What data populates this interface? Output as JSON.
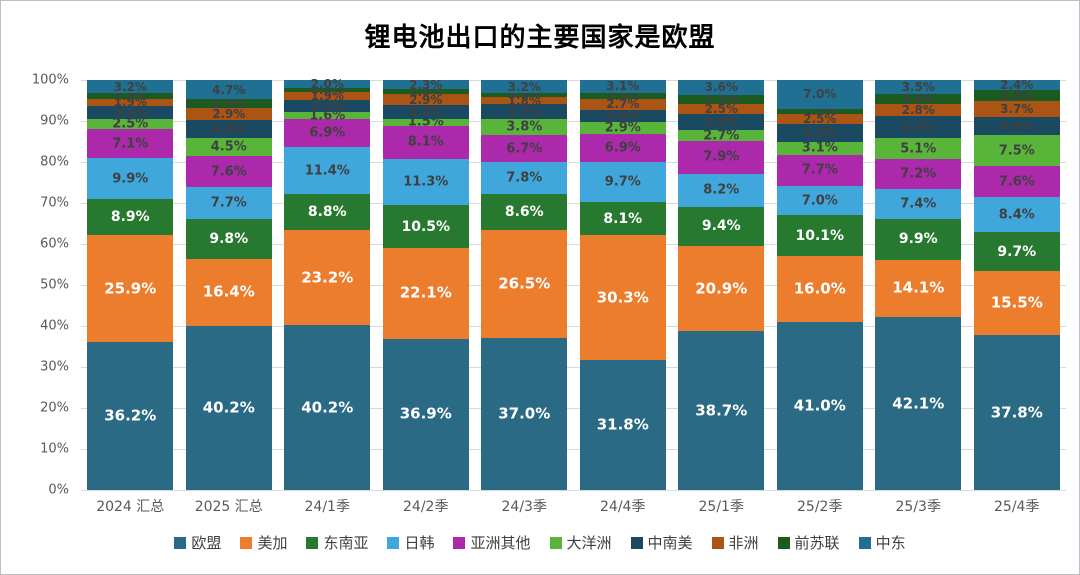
{
  "chart_data": {
    "type": "bar",
    "stacked": true,
    "percent_stacked": true,
    "title": "锂电池出口的主要国家是欧盟",
    "categories": [
      "2024 汇总",
      "2025 汇总",
      "24/1季",
      "24/2季",
      "24/3季",
      "24/4季",
      "25/1季",
      "25/2季",
      "25/3季",
      "25/4季"
    ],
    "series": [
      {
        "name": "欧盟",
        "color": "#2b6a84",
        "label_color": "#ffffff",
        "label_size": 15,
        "values": [
          36.2,
          40.2,
          40.2,
          36.9,
          37.0,
          31.8,
          38.7,
          41.0,
          42.1,
          37.8
        ]
      },
      {
        "name": "美加",
        "color": "#ec7d2d",
        "label_color": "#ffffff",
        "label_size": 15,
        "values": [
          25.9,
          16.4,
          23.2,
          22.1,
          26.5,
          30.3,
          20.9,
          16.0,
          14.1,
          15.5
        ]
      },
      {
        "name": "东南亚",
        "color": "#27792f",
        "label_color": "#ffffff",
        "label_size": 14,
        "values": [
          8.9,
          9.8,
          8.8,
          10.5,
          8.6,
          8.1,
          9.4,
          10.1,
          9.9,
          9.7
        ]
      },
      {
        "name": "日韩",
        "color": "#3fa7db",
        "label_color": "#404040",
        "label_size": 13,
        "values": [
          9.9,
          7.7,
          11.4,
          11.3,
          7.8,
          9.7,
          8.2,
          7.0,
          7.4,
          8.4
        ]
      },
      {
        "name": "亚洲其他",
        "color": "#ac29ac",
        "label_color": "#404040",
        "label_size": 13,
        "values": [
          7.1,
          7.6,
          6.9,
          8.1,
          6.7,
          6.9,
          7.9,
          7.7,
          7.2,
          7.6
        ]
      },
      {
        "name": "大洋洲",
        "color": "#59b43a",
        "label_color": "#404040",
        "label_size": 13,
        "values": [
          2.5,
          4.5,
          1.6,
          1.5,
          3.8,
          2.9,
          2.7,
          3.1,
          5.1,
          7.5
        ]
      },
      {
        "name": "中南美",
        "color": "#1a4a61",
        "label_color": "#404040",
        "label_size": 12,
        "values": [
          3.1,
          4.4,
          3.1,
          3.4,
          3.7,
          3.0,
          3.9,
          4.3,
          5.5,
          4.6
        ]
      },
      {
        "name": "非洲",
        "color": "#ab5414",
        "label_color": "#404040",
        "label_size": 12,
        "values": [
          1.9,
          2.9,
          1.9,
          2.9,
          1.8,
          2.7,
          2.5,
          2.5,
          2.8,
          3.7
        ]
      },
      {
        "name": "前苏联",
        "color": "#1b5b20",
        "label_color": "#404040",
        "label_size": 12,
        "values": [
          1.3,
          2.1,
          0.9,
          1.0,
          0.9,
          1.5,
          2.2,
          1.3,
          2.4,
          2.8
        ]
      },
      {
        "name": "中东",
        "color": "#1f7092",
        "label_color": "#404040",
        "label_size": 12,
        "values": [
          3.2,
          4.7,
          2.0,
          2.3,
          3.2,
          3.1,
          3.6,
          7.0,
          3.5,
          2.4
        ]
      }
    ],
    "yticks": [
      "100%",
      "90%",
      "80%",
      "70%",
      "60%",
      "50%",
      "40%",
      "30%",
      "20%",
      "10%",
      "0%"
    ],
    "ylim": [
      0,
      100
    ],
    "grid": true,
    "legend_position": "bottom",
    "value_suffix": "%"
  }
}
